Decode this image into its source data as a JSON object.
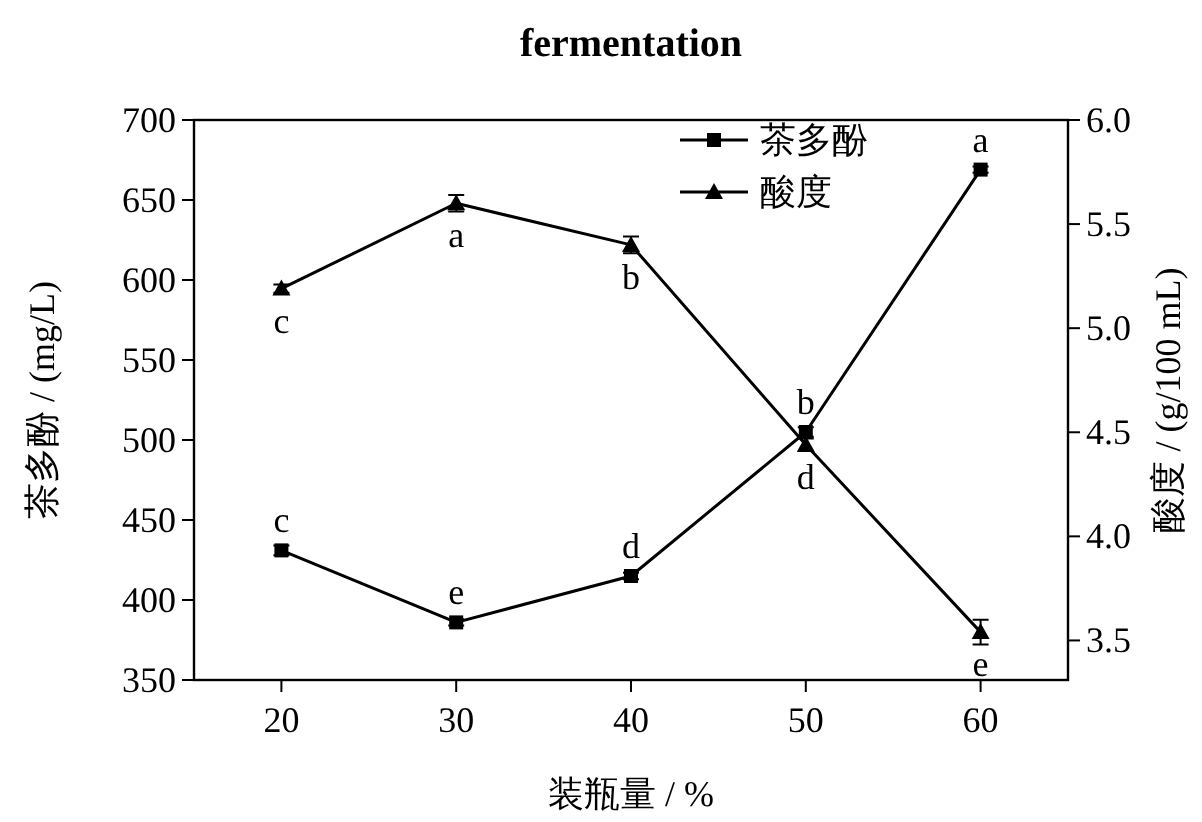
{
  "chart_data": {
    "type": "line",
    "title": "fermentation",
    "xlabel": "装瓶量 / %",
    "ylabel": "茶多酚 / (mg/L)",
    "y2label": "酸度 / (g/100 mL)",
    "x": [
      20,
      30,
      40,
      50,
      60
    ],
    "xlim": [
      15,
      65
    ],
    "xticks": [
      20,
      30,
      40,
      50,
      60
    ],
    "ylim": [
      350,
      700
    ],
    "yticks": [
      350,
      400,
      450,
      500,
      550,
      600,
      650,
      700
    ],
    "y2lim": [
      3.31,
      6.0
    ],
    "y2ticks": [
      {
        "value": 3.5,
        "label": "3.5"
      },
      {
        "value": 4.0,
        "label": "4.0"
      },
      {
        "value": 4.5,
        "label": "4.5"
      },
      {
        "value": 5.0,
        "label": "5.0"
      },
      {
        "value": 5.5,
        "label": "5.5"
      },
      {
        "value": 6.0,
        "label": "6.0"
      }
    ],
    "series": [
      {
        "name": "茶多酚",
        "color": "#000000",
        "marker": "square",
        "values": [
          431,
          386,
          415,
          505,
          669
        ],
        "errors": [
          3,
          2,
          2,
          3,
          2
        ],
        "value_labels": [
          "c",
          "e",
          "d",
          "b",
          "a"
        ]
      },
      {
        "name": "酸度",
        "color": "#000000",
        "marker": "triangle",
        "axis": "y2",
        "values": [
          5.19,
          5.6,
          5.4,
          4.44,
          3.54
        ],
        "errors": [
          0.02,
          0.04,
          0.04,
          0.03,
          0.06
        ],
        "value_labels": [
          "c",
          "a",
          "b",
          "d",
          "e"
        ]
      }
    ],
    "legend": "top",
    "line_style": "solid"
  }
}
